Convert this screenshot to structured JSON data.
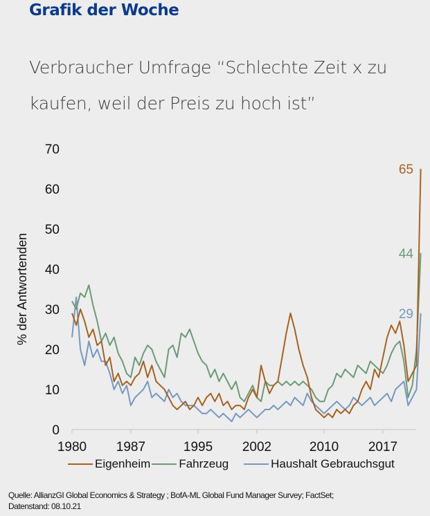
{
  "header": {
    "title": "Grafik der Woche",
    "subtitle": "Verbraucher Umfrage “Schlechte Zeit x zu kaufen, weil der Preis zu hoch ist”"
  },
  "footer": {
    "source_line1": "Quelle: AllianzGI Global Economics & Strategy ; BofA-ML Global Fund Manager Survey; FactSet;",
    "source_line2": "Datenstand: 08.10.21"
  },
  "chart_data": {
    "type": "line",
    "title": "Verbraucher Umfrage “Schlechte Zeit x zu kaufen, weil der Preis zu hoch ist”",
    "xlabel": "",
    "ylabel": "% der Antwortenden",
    "xlim": [
      1980,
      2021.5
    ],
    "ylim": [
      0,
      70
    ],
    "x_ticks": [
      1980,
      1987,
      1995,
      2002,
      2010,
      2017
    ],
    "x_tick_labels": [
      "1980",
      "1987",
      "1995",
      "2002",
      "2010",
      "2017"
    ],
    "y_ticks": [
      0,
      10,
      20,
      30,
      40,
      50,
      60,
      70
    ],
    "y_tick_labels": [
      "0",
      "10",
      "20",
      "30",
      "40",
      "50",
      "60",
      "70"
    ],
    "grid": false,
    "legend_position": "bottom",
    "x": [
      1980,
      1980.5,
      1981,
      1981.5,
      1982,
      1982.5,
      1983,
      1983.5,
      1984,
      1984.5,
      1985,
      1985.5,
      1986,
      1986.5,
      1987,
      1987.5,
      1988,
      1988.5,
      1989,
      1989.5,
      1990,
      1990.5,
      1991,
      1991.5,
      1992,
      1992.5,
      1993,
      1993.5,
      1994,
      1994.5,
      1995,
      1995.5,
      1996,
      1996.5,
      1997,
      1997.5,
      1998,
      1998.5,
      1999,
      1999.5,
      2000,
      2000.5,
      2001,
      2001.5,
      2002,
      2002.5,
      2003,
      2003.5,
      2004,
      2004.5,
      2005,
      2005.5,
      2006,
      2006.5,
      2007,
      2007.5,
      2008,
      2008.5,
      2009,
      2009.5,
      2010,
      2010.5,
      2011,
      2011.5,
      2012,
      2012.5,
      2013,
      2013.5,
      2014,
      2014.5,
      2015,
      2015.5,
      2016,
      2016.5,
      2017,
      2017.5,
      2018,
      2018.5,
      2019,
      2019.5,
      2020,
      2020.5,
      2021,
      2021.5
    ],
    "series": [
      {
        "name": "Eigenheim",
        "color": "#a5621f",
        "end_label": "65",
        "values": [
          29,
          26,
          30,
          27,
          23,
          25,
          21,
          22,
          16,
          18,
          12,
          14,
          11,
          12,
          11,
          13,
          14,
          17,
          13,
          16,
          12,
          11,
          10,
          8,
          6,
          5,
          6,
          7,
          5,
          6,
          8,
          6,
          8,
          9,
          7,
          9,
          6,
          7,
          5,
          6,
          6,
          5,
          8,
          10,
          8,
          16,
          12,
          9,
          11,
          12,
          18,
          24,
          29,
          25,
          20,
          16,
          13,
          8,
          5,
          4,
          3,
          4,
          3,
          5,
          4,
          5,
          4,
          6,
          7,
          10,
          12,
          10,
          15,
          13,
          18,
          23,
          26,
          24,
          27,
          21,
          12,
          14,
          16,
          65
        ]
      },
      {
        "name": "Fahrzeug",
        "color": "#6a9a76",
        "end_label": "44",
        "values": [
          32,
          30,
          34,
          33,
          36,
          31,
          27,
          22,
          24,
          21,
          23,
          19,
          17,
          14,
          13,
          18,
          16,
          19,
          21,
          20,
          17,
          15,
          13,
          20,
          21,
          18,
          24,
          23,
          25,
          22,
          19,
          17,
          16,
          13,
          15,
          12,
          14,
          12,
          10,
          12,
          8,
          7,
          9,
          11,
          8,
          7,
          12,
          11,
          11,
          12,
          11,
          12,
          11,
          12,
          11,
          12,
          11,
          10,
          8,
          7,
          7,
          10,
          11,
          14,
          13,
          15,
          14,
          13,
          16,
          15,
          14,
          17,
          16,
          15,
          14,
          16,
          19,
          21,
          22,
          17,
          8,
          11,
          20,
          44
        ]
      },
      {
        "name": "Haushalt Gebrauchsgut",
        "color": "#7598c2",
        "end_label": "29",
        "values": [
          23,
          33,
          20,
          16,
          22,
          18,
          20,
          17,
          17,
          14,
          10,
          12,
          9,
          11,
          6,
          8,
          9,
          10,
          12,
          8,
          9,
          8,
          7,
          10,
          8,
          9,
          7,
          6,
          6,
          6,
          5,
          4,
          4,
          5,
          4,
          3,
          4,
          3,
          2,
          4,
          3,
          4,
          5,
          4,
          3,
          4,
          5,
          5,
          6,
          5,
          6,
          7,
          6,
          8,
          7,
          6,
          9,
          7,
          6,
          5,
          4,
          5,
          6,
          7,
          6,
          5,
          6,
          8,
          7,
          6,
          7,
          8,
          6,
          7,
          8,
          9,
          7,
          10,
          11,
          12,
          6,
          8,
          10,
          29
        ]
      }
    ]
  }
}
